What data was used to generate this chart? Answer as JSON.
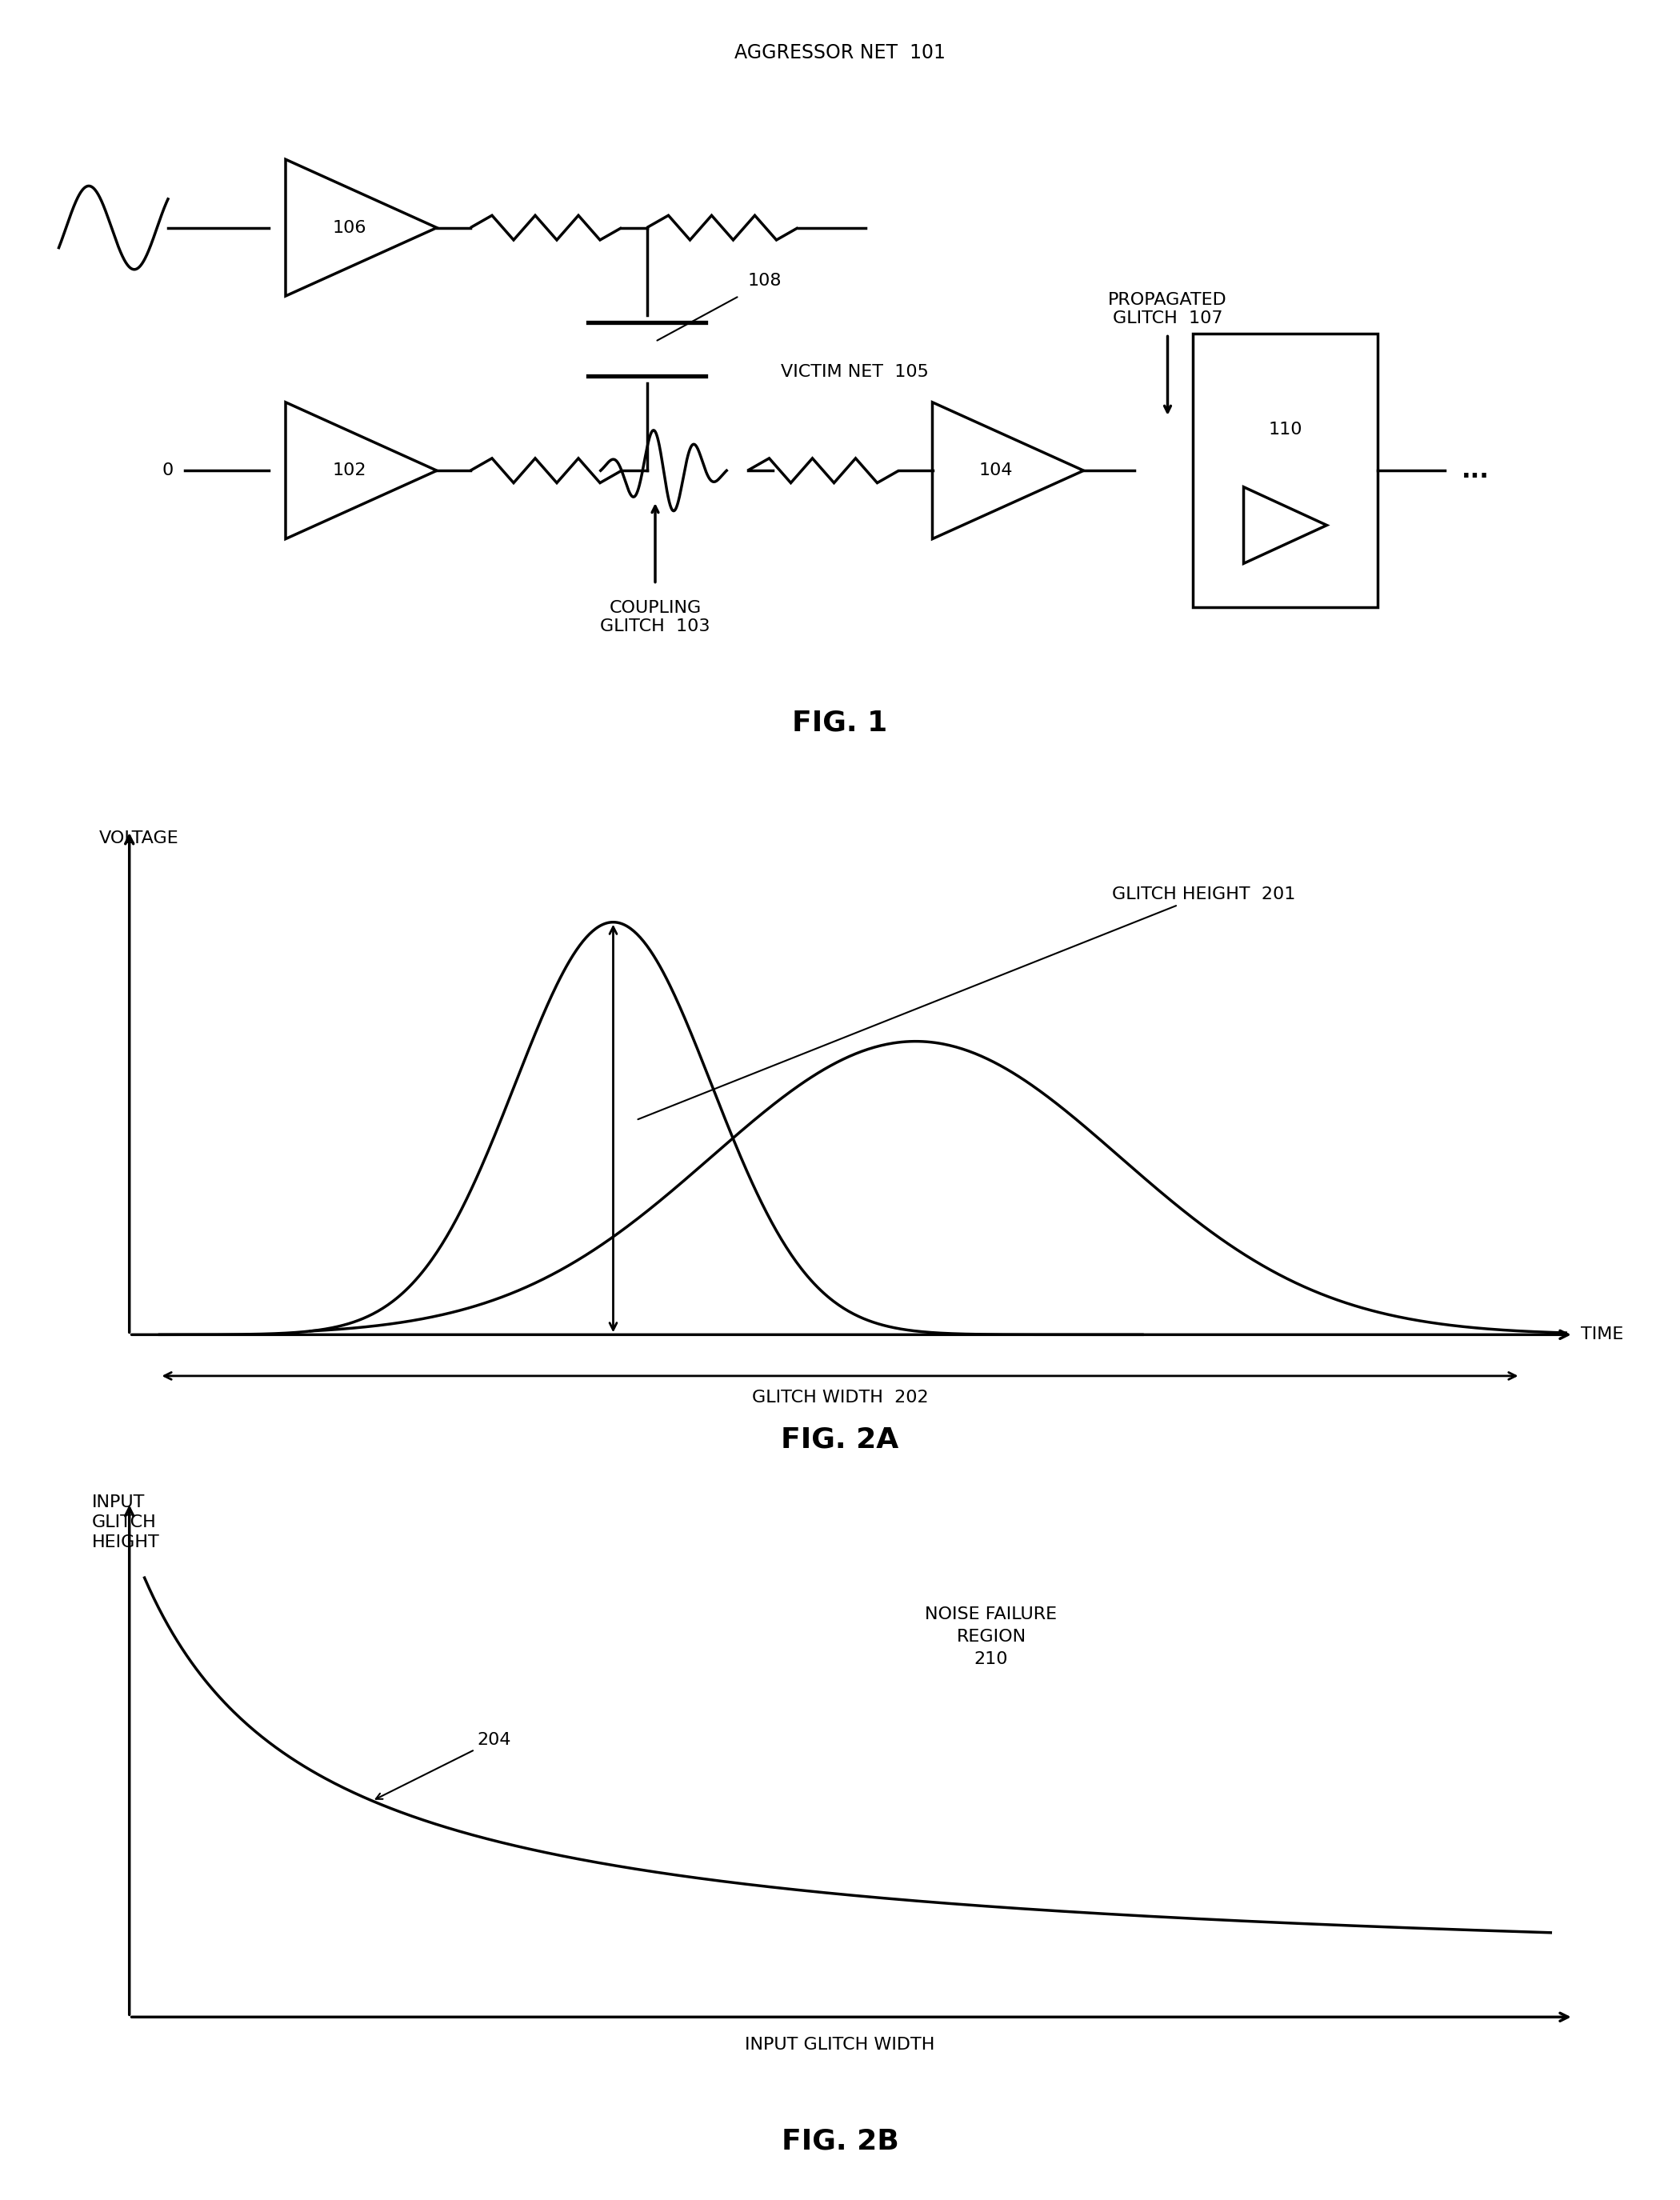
{
  "bg_color": "#ffffff",
  "fig1": {
    "title": "FIG. 1",
    "aggressor_net": "AGGRESSOR NET  101",
    "victim_net": "VICTIM NET  105",
    "coupling_glitch": "COUPLING\nGLITCH  103",
    "propagated_glitch": "PROPAGATED\nGLITCH  107",
    "label_106": "106",
    "label_102": "102",
    "label_104": "104",
    "label_110": "110",
    "label_108": "108",
    "label_0": "0",
    "dots": "..."
  },
  "fig2a": {
    "title": "FIG. 2A",
    "ylabel": "VOLTAGE",
    "xlabel": "TIME",
    "glitch_height_label": "GLITCH HEIGHT  201",
    "glitch_width_label": "GLITCH WIDTH  202"
  },
  "fig2b": {
    "title": "FIG. 2B",
    "ylabel": "INPUT\nGLITCH\nHEIGHT",
    "xlabel": "INPUT GLITCH WIDTH",
    "curve_label": "204",
    "region_label": "NOISE FAILURE\nREGION\n210"
  }
}
